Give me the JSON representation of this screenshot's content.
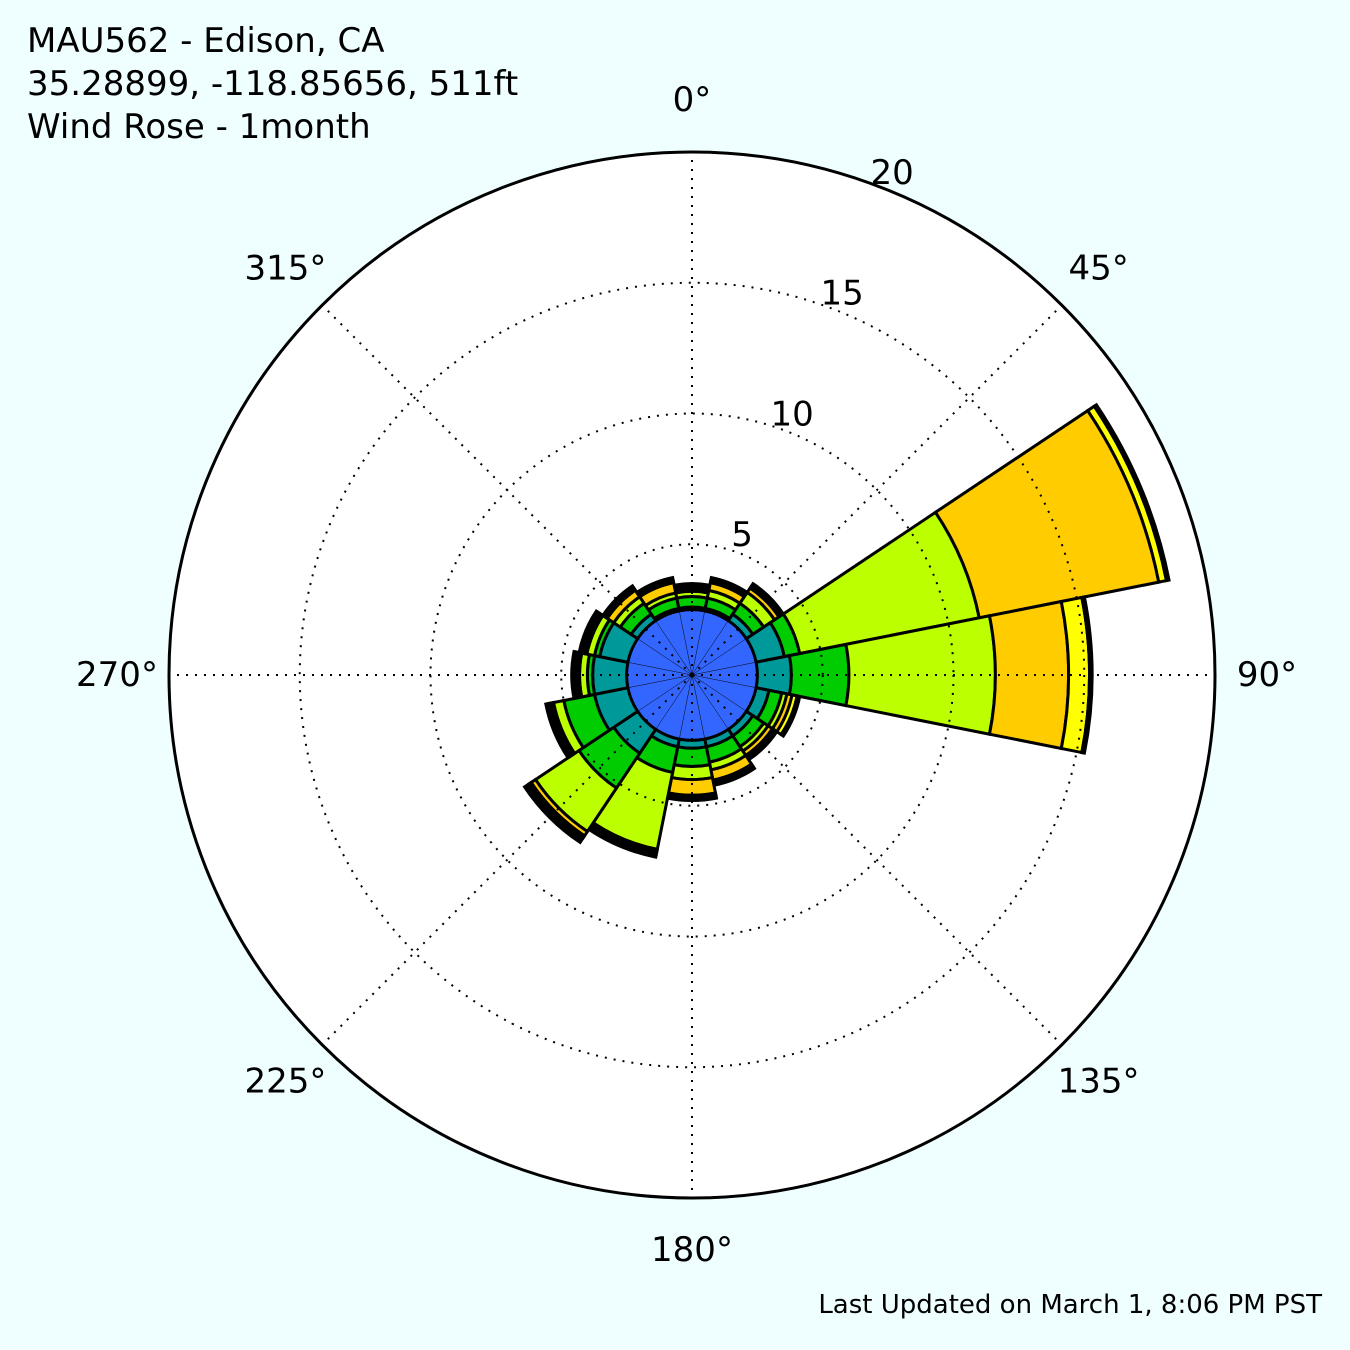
{
  "header": {
    "station": "MAU562 - Edison, CA",
    "location": "35.28899, -118.85656, 511ft",
    "subtitle": "Wind Rose - 1month"
  },
  "footer": {
    "updated": "Last Updated on March 1, 8:06 PM PST"
  },
  "chart_data": {
    "type": "wind_rose",
    "title": "Wind Rose - 1month",
    "rmax": 20,
    "radial_ticks": [
      5,
      10,
      15,
      20
    ],
    "radial_tick_labels": [
      "5",
      "10",
      "15",
      "20"
    ],
    "angle_ticks": [
      0,
      45,
      90,
      135,
      180,
      225,
      270,
      315
    ],
    "angle_tick_labels": [
      "0°",
      "45°",
      "90°",
      "135°",
      "180°",
      "225°",
      "270°",
      "315°"
    ],
    "sector_width_deg": 22.5,
    "grid": true,
    "speed_bin_colors": [
      "#3366ff",
      "#009999",
      "#00cc00",
      "#bbff00",
      "#ffcc00",
      "#ffff00",
      "#000000"
    ],
    "directions": [
      0,
      22.5,
      45,
      67.5,
      90,
      112.5,
      135,
      157.5,
      180,
      202.5,
      225,
      247.5,
      270,
      292.5,
      315,
      337.5
    ],
    "cumulative_percent": [
      [
        2.5,
        2.5,
        2.5,
        2.5,
        2.5,
        2.5,
        2.5,
        2.5,
        2.5,
        2.5,
        2.5,
        2.5,
        2.5,
        2.5,
        2.5,
        2.5
      ],
      [
        2.6,
        2.6,
        2.8,
        3.6,
        3.8,
        3.0,
        2.8,
        2.8,
        2.8,
        2.8,
        3.6,
        3.8,
        3.8,
        3.6,
        2.8,
        2.6
      ],
      [
        3.0,
        3.0,
        3.3,
        4.2,
        6.0,
        3.5,
        3.3,
        3.4,
        3.5,
        3.8,
        5.2,
        5.0,
        4.0,
        3.8,
        3.3,
        3.0
      ],
      [
        3.2,
        3.3,
        3.8,
        11.2,
        11.6,
        3.7,
        3.5,
        3.7,
        4.0,
        6.8,
        7.2,
        5.4,
        4.3,
        4.1,
        3.6,
        3.2
      ],
      [
        3.3,
        3.6,
        4.0,
        18.2,
        14.4,
        3.9,
        3.7,
        4.1,
        4.6,
        6.9,
        7.4,
        5.5,
        4.4,
        4.2,
        3.9,
        3.6
      ],
      [
        3.4,
        3.7,
        4.1,
        18.5,
        15.2,
        4.1,
        3.8,
        4.2,
        4.7,
        7.0,
        7.5,
        5.6,
        4.5,
        4.3,
        4.0,
        3.7
      ],
      [
        3.5,
        3.8,
        4.2,
        18.6,
        15.3,
        4.2,
        3.9,
        4.3,
        4.8,
        7.1,
        7.7,
        5.7,
        4.6,
        4.4,
        4.1,
        3.8
      ]
    ]
  }
}
